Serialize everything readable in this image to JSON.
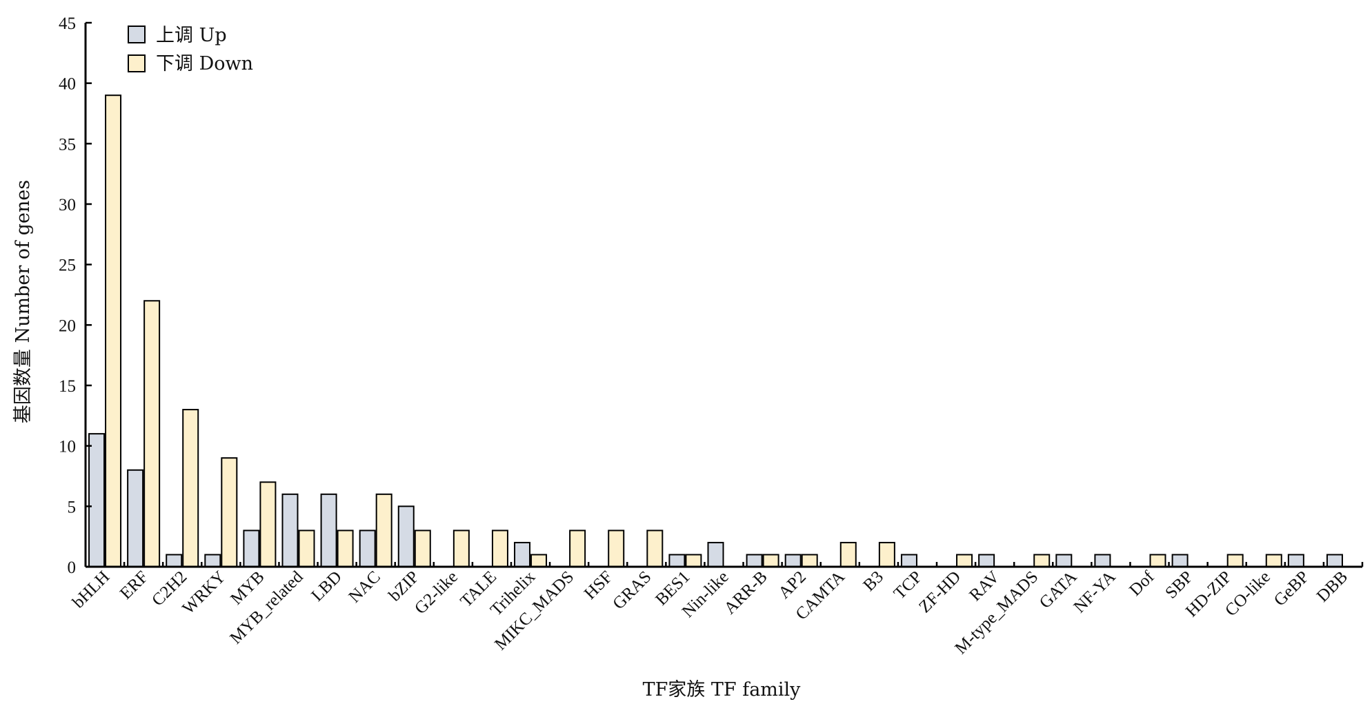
{
  "chart_data": {
    "type": "bar",
    "title": "",
    "xlabel": "TF家族 TF family",
    "ylabel": "基因数量 Number of genes",
    "ylim": [
      0,
      45
    ],
    "yticks": [
      0,
      5,
      10,
      15,
      20,
      25,
      30,
      35,
      40,
      45
    ],
    "grid": false,
    "legend_position": "top-left",
    "categories": [
      "bHLH",
      "ERF",
      "C2H2",
      "WRKY",
      "MYB",
      "MYB_related",
      "LBD",
      "NAC",
      "bZIP",
      "G2-like",
      "TALE",
      "Trihelix",
      "MIKC_MADS",
      "HSF",
      "GRAS",
      "BES1",
      "Nin-like",
      "ARR-B",
      "AP2",
      "CAMTA",
      "B3",
      "TCP",
      "ZF-HD",
      "RAV",
      "M-type_MADS",
      "GATA",
      "NF-YA",
      "Dof",
      "SBP",
      "HD-ZIP",
      "CO-like",
      "GeBP",
      "DBB"
    ],
    "series": [
      {
        "name": "上调 Up",
        "color": "#d5dbe5",
        "values": [
          11,
          8,
          1,
          1,
          3,
          6,
          6,
          3,
          5,
          0,
          0,
          2,
          0,
          0,
          0,
          1,
          2,
          1,
          1,
          0,
          0,
          1,
          0,
          1,
          0,
          1,
          1,
          0,
          1,
          0,
          0,
          1,
          1
        ]
      },
      {
        "name": "下调 Down",
        "color": "#fdf0cc",
        "values": [
          39,
          22,
          13,
          9,
          7,
          3,
          3,
          6,
          3,
          3,
          3,
          1,
          3,
          3,
          3,
          1,
          0,
          1,
          1,
          2,
          2,
          0,
          1,
          0,
          1,
          0,
          0,
          1,
          0,
          1,
          1,
          0,
          0
        ]
      }
    ]
  }
}
